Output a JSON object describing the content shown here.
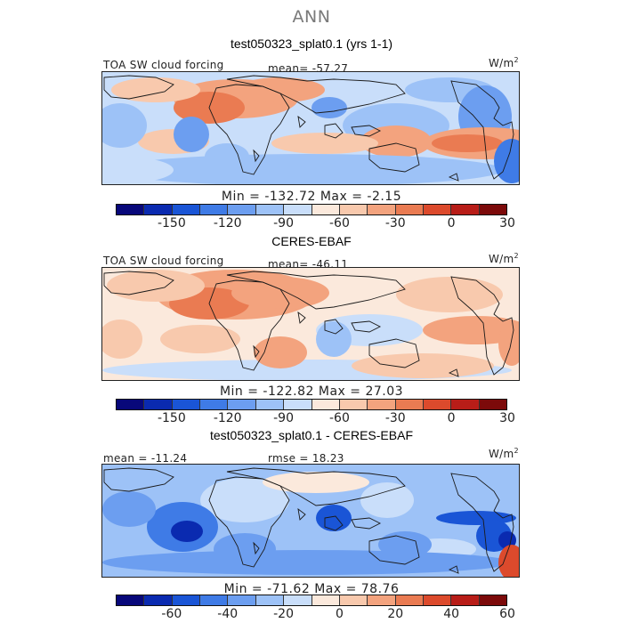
{
  "title": "ANN",
  "colors": {
    "scale": [
      "#08087a",
      "#0a2ab0",
      "#1a55d6",
      "#3f7be6",
      "#6c9ef0",
      "#9dc2f7",
      "#c9defa",
      "#fbe9dc",
      "#f8c9ad",
      "#f3a37e",
      "#ea7b52",
      "#dc4a2c",
      "#b81d18",
      "#7c0a0a"
    ],
    "border": "#222222",
    "coast": "#1a1a1a"
  },
  "panels": [
    {
      "title": "test050323_splat0.1 (yrs 1-1)",
      "left_label": "TOA SW cloud forcing",
      "center_label": "mean= -57.27",
      "units": "W/m",
      "units_sup": "2",
      "minmax": "Min = -132.72 Max =  -2.15",
      "ticks": [
        "-150",
        "-120",
        "-90",
        "-60",
        "-30",
        "0",
        "30"
      ],
      "field": "model"
    },
    {
      "title": "CERES-EBAF",
      "left_label": "TOA SW cloud forcing",
      "center_label": "mean= -46.11",
      "units": "W/m",
      "units_sup": "2",
      "minmax": "Min = -122.82 Max =  27.03",
      "ticks": [
        "-150",
        "-120",
        "-90",
        "-60",
        "-30",
        "0",
        "30"
      ],
      "field": "obs"
    },
    {
      "title": "test050323_splat0.1 - CERES-EBAF",
      "left_label": "mean = -11.24",
      "center_label": "rmse =  18.23",
      "units": "W/m",
      "units_sup": "2",
      "minmax": "Min = -71.62 Max =  78.76",
      "ticks": [
        "-60",
        "-40",
        "-20",
        "0",
        "20",
        "40",
        "60"
      ],
      "field": "diff"
    }
  ]
}
